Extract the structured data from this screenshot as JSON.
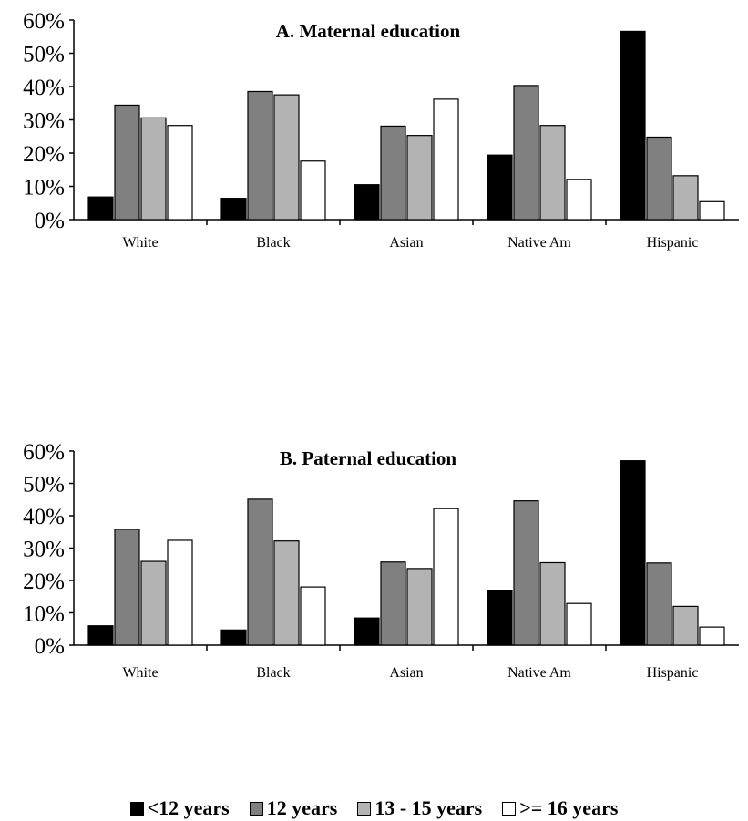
{
  "chart_data": [
    {
      "type": "bar",
      "title": "A. Maternal education",
      "categories": [
        "White",
        "Black",
        "Asian",
        "Native Am",
        "Hispanic"
      ],
      "series": [
        {
          "name": "<12 years",
          "color": "#000000",
          "values": [
            6.8,
            6.4,
            10.5,
            19.4,
            56.6
          ]
        },
        {
          "name": "12 years",
          "color": "#808080",
          "values": [
            34.4,
            38.5,
            28.1,
            40.3,
            24.8
          ]
        },
        {
          "name": "13 - 15 years",
          "color": "#b3b3b3",
          "values": [
            30.6,
            37.5,
            25.3,
            28.3,
            13.2
          ]
        },
        {
          "name": ">= 16 years",
          "color": "#ffffff",
          "values": [
            28.3,
            17.6,
            36.2,
            12.1,
            5.4
          ]
        }
      ],
      "ylim": [
        0,
        60
      ],
      "yticks": [
        "0%",
        "10%",
        "20%",
        "30%",
        "40%",
        "50%",
        "60%"
      ],
      "xlabel": "",
      "ylabel": "",
      "grid": false
    },
    {
      "type": "bar",
      "title": "B.  Paternal education",
      "categories": [
        "White",
        "Black",
        "Asian",
        "Native Am",
        "Hispanic"
      ],
      "series": [
        {
          "name": "<12 years",
          "color": "#000000",
          "values": [
            6.0,
            4.7,
            8.4,
            16.8,
            57.0
          ]
        },
        {
          "name": "12 years",
          "color": "#808080",
          "values": [
            35.8,
            45.1,
            25.7,
            44.6,
            25.4
          ]
        },
        {
          "name": "13 - 15 years",
          "color": "#b3b3b3",
          "values": [
            25.9,
            32.2,
            23.7,
            25.5,
            12.0
          ]
        },
        {
          "name": ">= 16 years",
          "color": "#ffffff",
          "values": [
            32.4,
            18.0,
            42.2,
            12.9,
            5.6
          ]
        }
      ],
      "ylim": [
        0,
        60
      ],
      "yticks": [
        "0%",
        "10%",
        "20%",
        "30%",
        "40%",
        "50%",
        "60%"
      ],
      "xlabel": "",
      "ylabel": "",
      "grid": false
    }
  ],
  "legend": {
    "placement": "bottom",
    "items": [
      {
        "label": "<12 years",
        "color": "#000000"
      },
      {
        "label": "12 years",
        "color": "#808080"
      },
      {
        "label": "13 - 15 years",
        "color": "#b3b3b3"
      },
      {
        "label": ">= 16 years",
        "color": "#ffffff"
      }
    ]
  }
}
